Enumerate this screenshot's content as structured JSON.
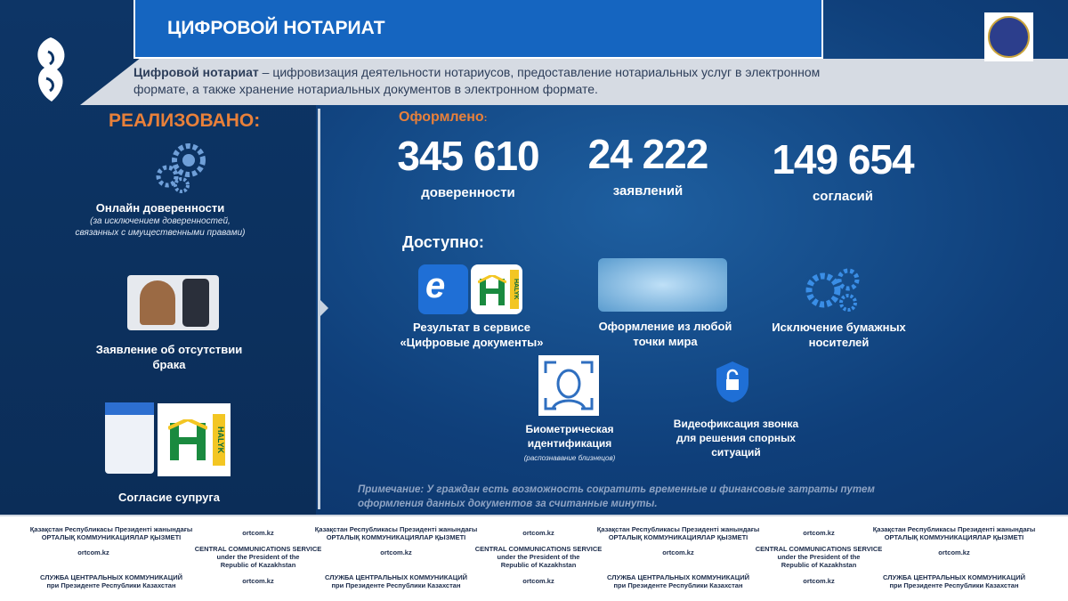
{
  "header": {
    "title": "ЦИФРОВОЙ НОТАРИАТ"
  },
  "intro": {
    "term": "Цифровой нотариат",
    "text": " – цифровизация деятельности нотариусов, предоставление нотариальных услуг в электронном формате, а также хранение нотариальных документов в электронном формате."
  },
  "left": {
    "heading": "РЕАЛИЗОВАНО:",
    "items": [
      {
        "title": "Онлайн доверенности",
        "note": "(за исключением доверенностей, связанных с имущественными правами)"
      },
      {
        "title": "Заявление об отсутствии брака"
      },
      {
        "title": "Согласие супруга"
      }
    ]
  },
  "stats": {
    "heading": "Оформлено",
    "colon": ":",
    "items": [
      {
        "value": "345 610",
        "label": "доверенности"
      },
      {
        "value": "24 222",
        "label": "заявлений"
      },
      {
        "value": "149 654",
        "label": "согласий"
      }
    ]
  },
  "available": {
    "heading": "Доступно:",
    "items": [
      {
        "title": "Результат в сервисе «Цифровые документы»"
      },
      {
        "title": "Оформление из любой точки мира"
      },
      {
        "title": "Исключение бумажных носителей"
      },
      {
        "title": "Биометрическая идентификация",
        "note": "(распознавание близнецов)"
      },
      {
        "title": "Видеофиксация звонка для решения спорных ситуаций"
      }
    ]
  },
  "icons": {
    "halyk": "HALYK"
  },
  "note": "Примечание: У граждан есть возможность сократить временные и финансовые затраты путем оформления данных документов за считанные минуты.",
  "footer": {
    "kz": [
      "Қазақстан Республикасы Президенті жанындағы",
      "ОРТАЛЫҚ КОММУНИКАЦИЯЛАР ҚЫЗМЕТІ"
    ],
    "en": [
      "CENTRAL COMMUNICATIONS SERVICE",
      "under the President of the",
      "Republic of Kazakhstan"
    ],
    "ru": [
      "СЛУЖБА ЦЕНТРАЛЬНЫХ КОММУНИКАЦИЙ",
      "при Президенте Республики Казахстан"
    ],
    "site": "ortcom.kz"
  }
}
